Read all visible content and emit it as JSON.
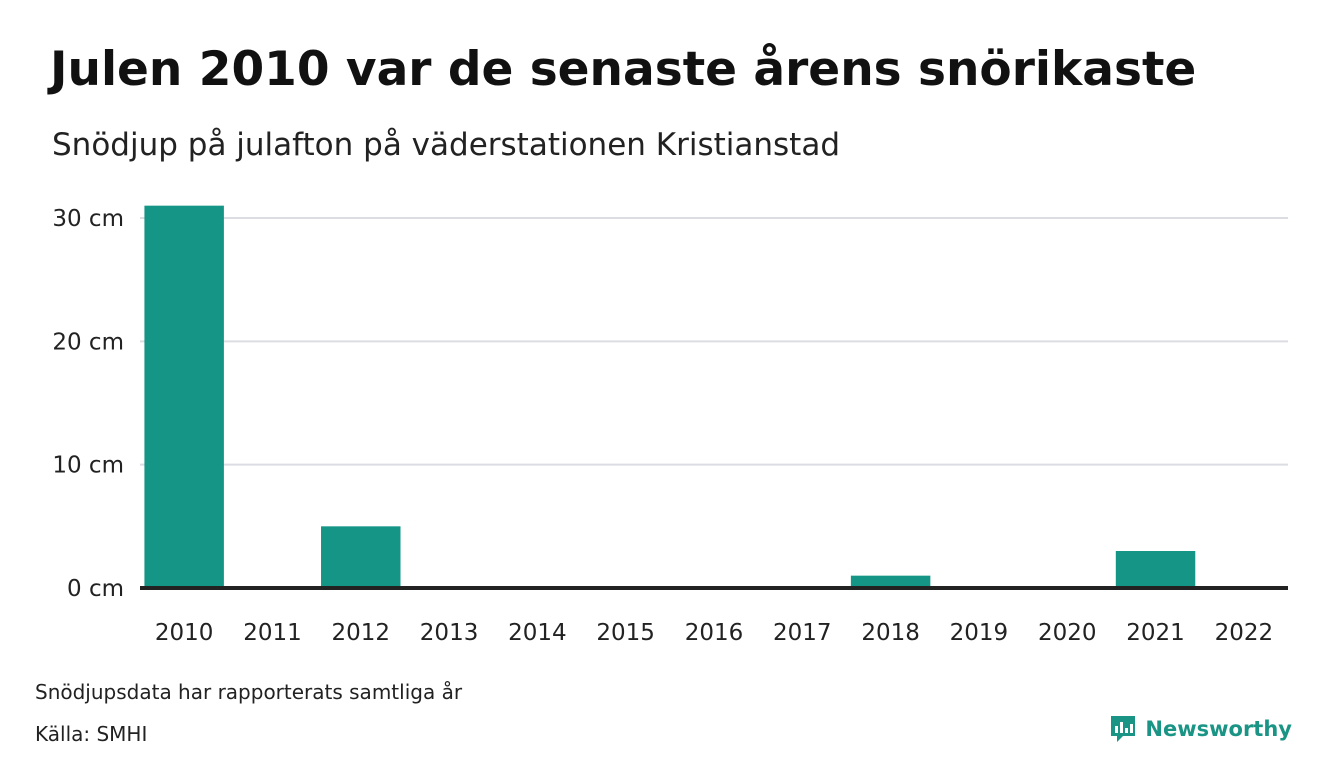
{
  "colors": {
    "bar": "#149585",
    "grid": "#dcdde3",
    "baseline": "#222222",
    "brand": "#1a9484"
  },
  "chart_data": {
    "type": "bar",
    "title": "Julen 2010 var de senaste årens snörikaste",
    "subtitle": "Snödjup på julafton på väderstationen Kristianstad",
    "categories": [
      "2010",
      "2011",
      "2012",
      "2013",
      "2014",
      "2015",
      "2016",
      "2017",
      "2018",
      "2019",
      "2020",
      "2021",
      "2022"
    ],
    "values": [
      31,
      0,
      5,
      0,
      0,
      0,
      0,
      0,
      1,
      0,
      0,
      3,
      0
    ],
    "ylim": [
      0,
      30
    ],
    "yticks": [
      0,
      10,
      20,
      30
    ],
    "ytick_labels": [
      "0 cm",
      "10 cm",
      "20 cm",
      "30 cm"
    ],
    "grid": true
  },
  "footer": {
    "note": "Snödjupsdata har rapporterats samtliga år",
    "source": "Källa: SMHI",
    "brand": "Newsworthy",
    "brand_icon": "newsworthy-logo-icon"
  }
}
